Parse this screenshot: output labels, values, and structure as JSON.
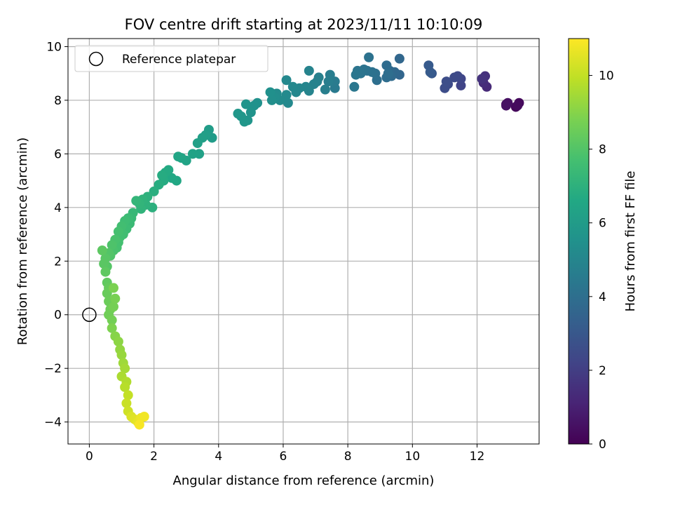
{
  "chart_data": {
    "type": "scatter",
    "title": "FOV centre drift starting at 2023/11/11 10:10:09",
    "xlabel": "Angular distance from reference (arcmin)",
    "ylabel": "Rotation from reference (arcmin)",
    "xlim": [
      -0.66,
      13.92
    ],
    "ylim": [
      -4.82,
      10.3
    ],
    "xticks": [
      0,
      2,
      4,
      6,
      8,
      10,
      12
    ],
    "yticks": [
      -4,
      -2,
      0,
      2,
      4,
      6,
      8,
      10
    ],
    "grid": true,
    "legend": {
      "position": "top-left",
      "entries": [
        "Reference platepar"
      ]
    },
    "reference_point": {
      "x": 0,
      "y": 0,
      "marker": "open-circle"
    },
    "colorbar": {
      "label": "Hours from first FF file",
      "range": [
        0,
        11
      ],
      "ticks": [
        0,
        2,
        4,
        6,
        8,
        10
      ],
      "colormap": "viridis"
    },
    "series": [
      {
        "points": [
          [
            13.2,
            7.75
          ],
          [
            13.3,
            7.9
          ],
          [
            13.25,
            7.8
          ],
          [
            12.9,
            7.85
          ],
          [
            12.95,
            7.9
          ],
          [
            12.9,
            7.8
          ],
          [
            12.3,
            8.5
          ],
          [
            12.2,
            8.65
          ],
          [
            12.25,
            8.9
          ],
          [
            12.15,
            8.8
          ],
          [
            11.5,
            8.55
          ],
          [
            11.5,
            8.8
          ],
          [
            11.4,
            8.9
          ],
          [
            11.3,
            8.85
          ],
          [
            11.1,
            8.6
          ],
          [
            11.0,
            8.45
          ],
          [
            11.05,
            8.7
          ],
          [
            10.6,
            9.0
          ],
          [
            10.5,
            9.3
          ],
          [
            10.55,
            9.05
          ],
          [
            9.6,
            8.95
          ],
          [
            9.6,
            9.55
          ],
          [
            9.45,
            9.05
          ],
          [
            9.3,
            9.1
          ],
          [
            9.35,
            8.9
          ],
          [
            9.2,
            9.3
          ],
          [
            9.2,
            8.85
          ],
          [
            9.25,
            9.0
          ],
          [
            8.9,
            8.75
          ],
          [
            8.85,
            9.0
          ],
          [
            8.75,
            9.05
          ],
          [
            8.65,
            9.6
          ],
          [
            8.6,
            9.1
          ],
          [
            8.5,
            9.15
          ],
          [
            8.4,
            9.0
          ],
          [
            8.3,
            9.1
          ],
          [
            8.25,
            8.95
          ],
          [
            8.2,
            8.5
          ],
          [
            7.6,
            8.45
          ],
          [
            7.6,
            8.7
          ],
          [
            7.45,
            8.95
          ],
          [
            7.4,
            8.7
          ],
          [
            7.3,
            8.4
          ],
          [
            7.1,
            8.85
          ],
          [
            7.05,
            8.7
          ],
          [
            6.95,
            8.6
          ],
          [
            6.8,
            9.1
          ],
          [
            6.8,
            8.35
          ],
          [
            6.7,
            8.5
          ],
          [
            6.5,
            8.45
          ],
          [
            6.4,
            8.3
          ],
          [
            6.3,
            8.5
          ],
          [
            6.1,
            8.75
          ],
          [
            6.15,
            7.9
          ],
          [
            6.1,
            8.2
          ],
          [
            5.9,
            8.0
          ],
          [
            5.8,
            8.25
          ],
          [
            5.75,
            8.1
          ],
          [
            5.65,
            8.0
          ],
          [
            5.6,
            8.3
          ],
          [
            5.2,
            7.9
          ],
          [
            5.1,
            7.8
          ],
          [
            5.0,
            7.55
          ],
          [
            4.85,
            7.85
          ],
          [
            4.9,
            7.25
          ],
          [
            4.8,
            7.2
          ],
          [
            4.7,
            7.4
          ],
          [
            4.6,
            7.5
          ],
          [
            3.8,
            6.6
          ],
          [
            3.7,
            6.9
          ],
          [
            3.6,
            6.7
          ],
          [
            3.5,
            6.6
          ],
          [
            3.35,
            6.4
          ],
          [
            3.4,
            6.0
          ],
          [
            3.2,
            6.0
          ],
          [
            3.0,
            5.75
          ],
          [
            2.85,
            5.85
          ],
          [
            2.75,
            5.9
          ],
          [
            2.7,
            5.0
          ],
          [
            2.55,
            5.1
          ],
          [
            2.45,
            5.4
          ],
          [
            2.35,
            5.3
          ],
          [
            2.3,
            5.0
          ],
          [
            2.25,
            5.2
          ],
          [
            2.15,
            4.85
          ],
          [
            2.0,
            4.6
          ],
          [
            1.95,
            4.0
          ],
          [
            1.8,
            4.4
          ],
          [
            1.75,
            4.1
          ],
          [
            1.65,
            4.3
          ],
          [
            1.6,
            3.95
          ],
          [
            1.55,
            4.15
          ],
          [
            1.45,
            4.25
          ],
          [
            1.35,
            3.8
          ],
          [
            1.3,
            3.6
          ],
          [
            1.25,
            3.4
          ],
          [
            1.2,
            3.6
          ],
          [
            1.15,
            3.2
          ],
          [
            1.1,
            3.5
          ],
          [
            1.05,
            3.0
          ],
          [
            1.0,
            3.3
          ],
          [
            0.95,
            2.9
          ],
          [
            0.9,
            2.7
          ],
          [
            0.9,
            3.1
          ],
          [
            0.85,
            2.5
          ],
          [
            0.8,
            2.8
          ],
          [
            0.75,
            2.4
          ],
          [
            0.7,
            2.6
          ],
          [
            0.65,
            2.2
          ],
          [
            0.6,
            2.3
          ],
          [
            0.55,
            1.8
          ],
          [
            0.5,
            2.1
          ],
          [
            0.45,
            1.9
          ],
          [
            0.4,
            2.4
          ],
          [
            0.5,
            1.6
          ],
          [
            0.55,
            1.2
          ],
          [
            0.6,
            1.0
          ],
          [
            0.55,
            0.8
          ],
          [
            0.6,
            0.5
          ],
          [
            0.65,
            0.2
          ],
          [
            0.6,
            0.0
          ],
          [
            0.7,
            -0.2
          ],
          [
            0.75,
            0.3
          ],
          [
            0.8,
            0.6
          ],
          [
            0.75,
            1.0
          ],
          [
            0.7,
            -0.5
          ],
          [
            0.8,
            -0.8
          ],
          [
            0.9,
            -1.0
          ],
          [
            0.95,
            -1.3
          ],
          [
            1.0,
            -1.5
          ],
          [
            1.05,
            -1.8
          ],
          [
            1.1,
            -2.0
          ],
          [
            1.0,
            -2.3
          ],
          [
            1.15,
            -2.5
          ],
          [
            1.1,
            -2.7
          ],
          [
            1.2,
            -3.0
          ],
          [
            1.15,
            -3.3
          ],
          [
            1.2,
            -3.6
          ],
          [
            1.3,
            -3.8
          ],
          [
            1.4,
            -3.9
          ],
          [
            1.5,
            -4.0
          ],
          [
            1.6,
            -3.85
          ],
          [
            1.7,
            -3.8
          ],
          [
            1.55,
            -4.1
          ]
        ],
        "hours": [
          0.2,
          0.25,
          0.3,
          0.4,
          0.45,
          0.5,
          1.3,
          1.4,
          1.5,
          1.6,
          2.2,
          2.3,
          2.4,
          2.45,
          2.5,
          2.55,
          2.6,
          3.0,
          3.1,
          3.15,
          3.6,
          3.65,
          3.7,
          3.75,
          3.8,
          3.85,
          3.9,
          3.95,
          4.0,
          4.05,
          4.1,
          4.12,
          4.15,
          4.2,
          4.22,
          4.25,
          4.3,
          4.35,
          4.5,
          4.55,
          4.6,
          4.65,
          4.7,
          4.75,
          4.8,
          4.85,
          4.9,
          4.92,
          4.95,
          5.0,
          5.05,
          5.1,
          5.12,
          5.15,
          5.2,
          5.25,
          5.3,
          5.35,
          5.4,
          5.45,
          5.5,
          5.55,
          5.6,
          5.65,
          5.7,
          5.72,
          5.75,
          5.8,
          6.0,
          6.05,
          6.1,
          6.15,
          6.2,
          6.25,
          6.3,
          6.35,
          6.4,
          6.45,
          6.55,
          6.6,
          6.65,
          6.7,
          6.72,
          6.75,
          6.8,
          6.9,
          6.95,
          7.0,
          7.05,
          7.1,
          7.12,
          7.15,
          7.2,
          7.3,
          7.35,
          7.4,
          7.45,
          7.5,
          7.55,
          7.6,
          7.62,
          7.65,
          7.7,
          7.72,
          7.75,
          7.8,
          7.82,
          7.9,
          7.95,
          8.0,
          8.05,
          8.1,
          8.15,
          8.2,
          8.25,
          8.3,
          8.4,
          8.45,
          8.5,
          8.55,
          8.6,
          8.65,
          8.7,
          8.75,
          8.8,
          8.85,
          9.0,
          9.1,
          9.2,
          9.3,
          9.4,
          9.5,
          9.6,
          9.7,
          9.8,
          10.0,
          10.1,
          10.2,
          10.4,
          10.5,
          10.6,
          10.7,
          10.8,
          10.9
        ]
      }
    ]
  }
}
